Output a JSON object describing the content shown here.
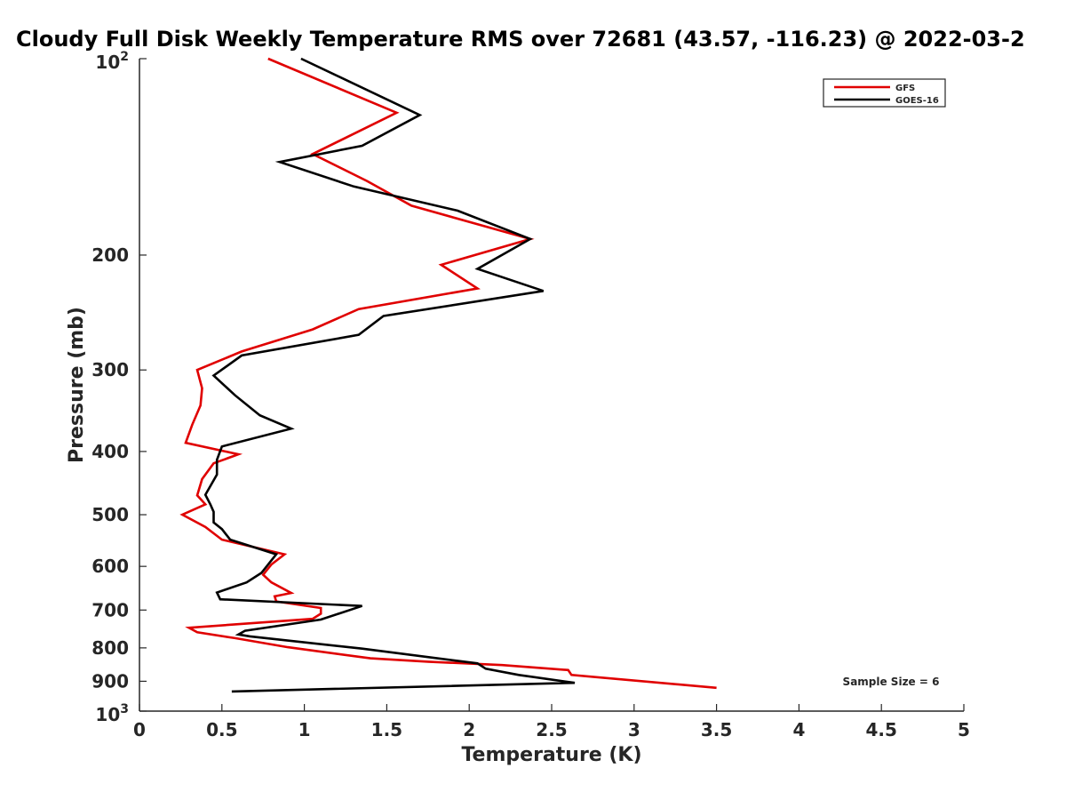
{
  "chart_data": {
    "type": "line",
    "title": "Cloudy Full Disk Weekly Temperature RMS over 72681 (43.57, -116.23) @ 2022-03-2",
    "xlabel": "Temperature (K)",
    "ylabel": "Pressure (mb)",
    "xlim": [
      0,
      5
    ],
    "ylim": [
      100,
      1000
    ],
    "y_scale": "log",
    "y_reversed": true,
    "grid": false,
    "legend_position": "top-right",
    "xticks": [
      0,
      0.5,
      1,
      1.5,
      2,
      2.5,
      3,
      3.5,
      4,
      4.5,
      5
    ],
    "xtick_labels": [
      "0",
      "0.5",
      "1",
      "1.5",
      "2",
      "2.5",
      "3",
      "3.5",
      "4",
      "4.5",
      "5"
    ],
    "yticks": [
      100,
      200,
      300,
      400,
      500,
      600,
      700,
      800,
      900,
      1000
    ],
    "ytick_labels": [
      "10^2",
      "200",
      "300",
      "400",
      "500",
      "600",
      "700",
      "800",
      "900",
      "10^3"
    ],
    "annotation": "Sample Size = 6",
    "series": [
      {
        "name": "GFS",
        "color": "#e00000",
        "points": [
          [
            0.78,
            100
          ],
          [
            1.56,
            121
          ],
          [
            1.05,
            140
          ],
          [
            1.38,
            154
          ],
          [
            1.65,
            168
          ],
          [
            2.37,
            189
          ],
          [
            1.83,
            207
          ],
          [
            2.05,
            225
          ],
          [
            1.33,
            242
          ],
          [
            1.05,
            260
          ],
          [
            0.62,
            281
          ],
          [
            0.35,
            300
          ],
          [
            0.38,
            320
          ],
          [
            0.37,
            340
          ],
          [
            0.32,
            364
          ],
          [
            0.28,
            388
          ],
          [
            0.6,
            404
          ],
          [
            0.45,
            417
          ],
          [
            0.38,
            441
          ],
          [
            0.35,
            467
          ],
          [
            0.4,
            482
          ],
          [
            0.26,
            500
          ],
          [
            0.4,
            522
          ],
          [
            0.5,
            546
          ],
          [
            0.88,
            575
          ],
          [
            0.8,
            596
          ],
          [
            0.75,
            618
          ],
          [
            0.8,
            635
          ],
          [
            0.92,
            659
          ],
          [
            0.82,
            667
          ],
          [
            0.83,
            679
          ],
          [
            1.1,
            695
          ],
          [
            1.1,
            709
          ],
          [
            1.05,
            722
          ],
          [
            0.3,
            745
          ],
          [
            0.35,
            757
          ],
          [
            0.58,
            773
          ],
          [
            0.9,
            798
          ],
          [
            1.4,
            830
          ],
          [
            1.75,
            840
          ],
          [
            2.2,
            850
          ],
          [
            2.6,
            865
          ],
          [
            2.62,
            880
          ],
          [
            3.5,
            921
          ]
        ]
      },
      {
        "name": "GOES-16",
        "color": "#000000",
        "points": [
          [
            0.98,
            100
          ],
          [
            1.7,
            122
          ],
          [
            1.35,
            136
          ],
          [
            0.85,
            144
          ],
          [
            1.3,
            157
          ],
          [
            1.93,
            171
          ],
          [
            2.37,
            189
          ],
          [
            2.05,
            210
          ],
          [
            2.45,
            227
          ],
          [
            1.48,
            248
          ],
          [
            1.33,
            265
          ],
          [
            0.62,
            285
          ],
          [
            0.45,
            306
          ],
          [
            0.58,
            328
          ],
          [
            0.73,
            352
          ],
          [
            0.92,
            369
          ],
          [
            0.5,
            393
          ],
          [
            0.47,
            412
          ],
          [
            0.47,
            434
          ],
          [
            0.4,
            466
          ],
          [
            0.43,
            482
          ],
          [
            0.45,
            495
          ],
          [
            0.45,
            514
          ],
          [
            0.5,
            526
          ],
          [
            0.55,
            546
          ],
          [
            0.83,
            575
          ],
          [
            0.74,
            614
          ],
          [
            0.65,
            635
          ],
          [
            0.47,
            658
          ],
          [
            0.49,
            674
          ],
          [
            1.35,
            690
          ],
          [
            1.1,
            724
          ],
          [
            0.64,
            753
          ],
          [
            0.6,
            763
          ],
          [
            0.67,
            768
          ],
          [
            1.35,
            802
          ],
          [
            2.05,
            845
          ],
          [
            2.1,
            861
          ],
          [
            2.3,
            880
          ],
          [
            2.64,
            905
          ],
          [
            0.56,
            933
          ]
        ]
      }
    ]
  }
}
